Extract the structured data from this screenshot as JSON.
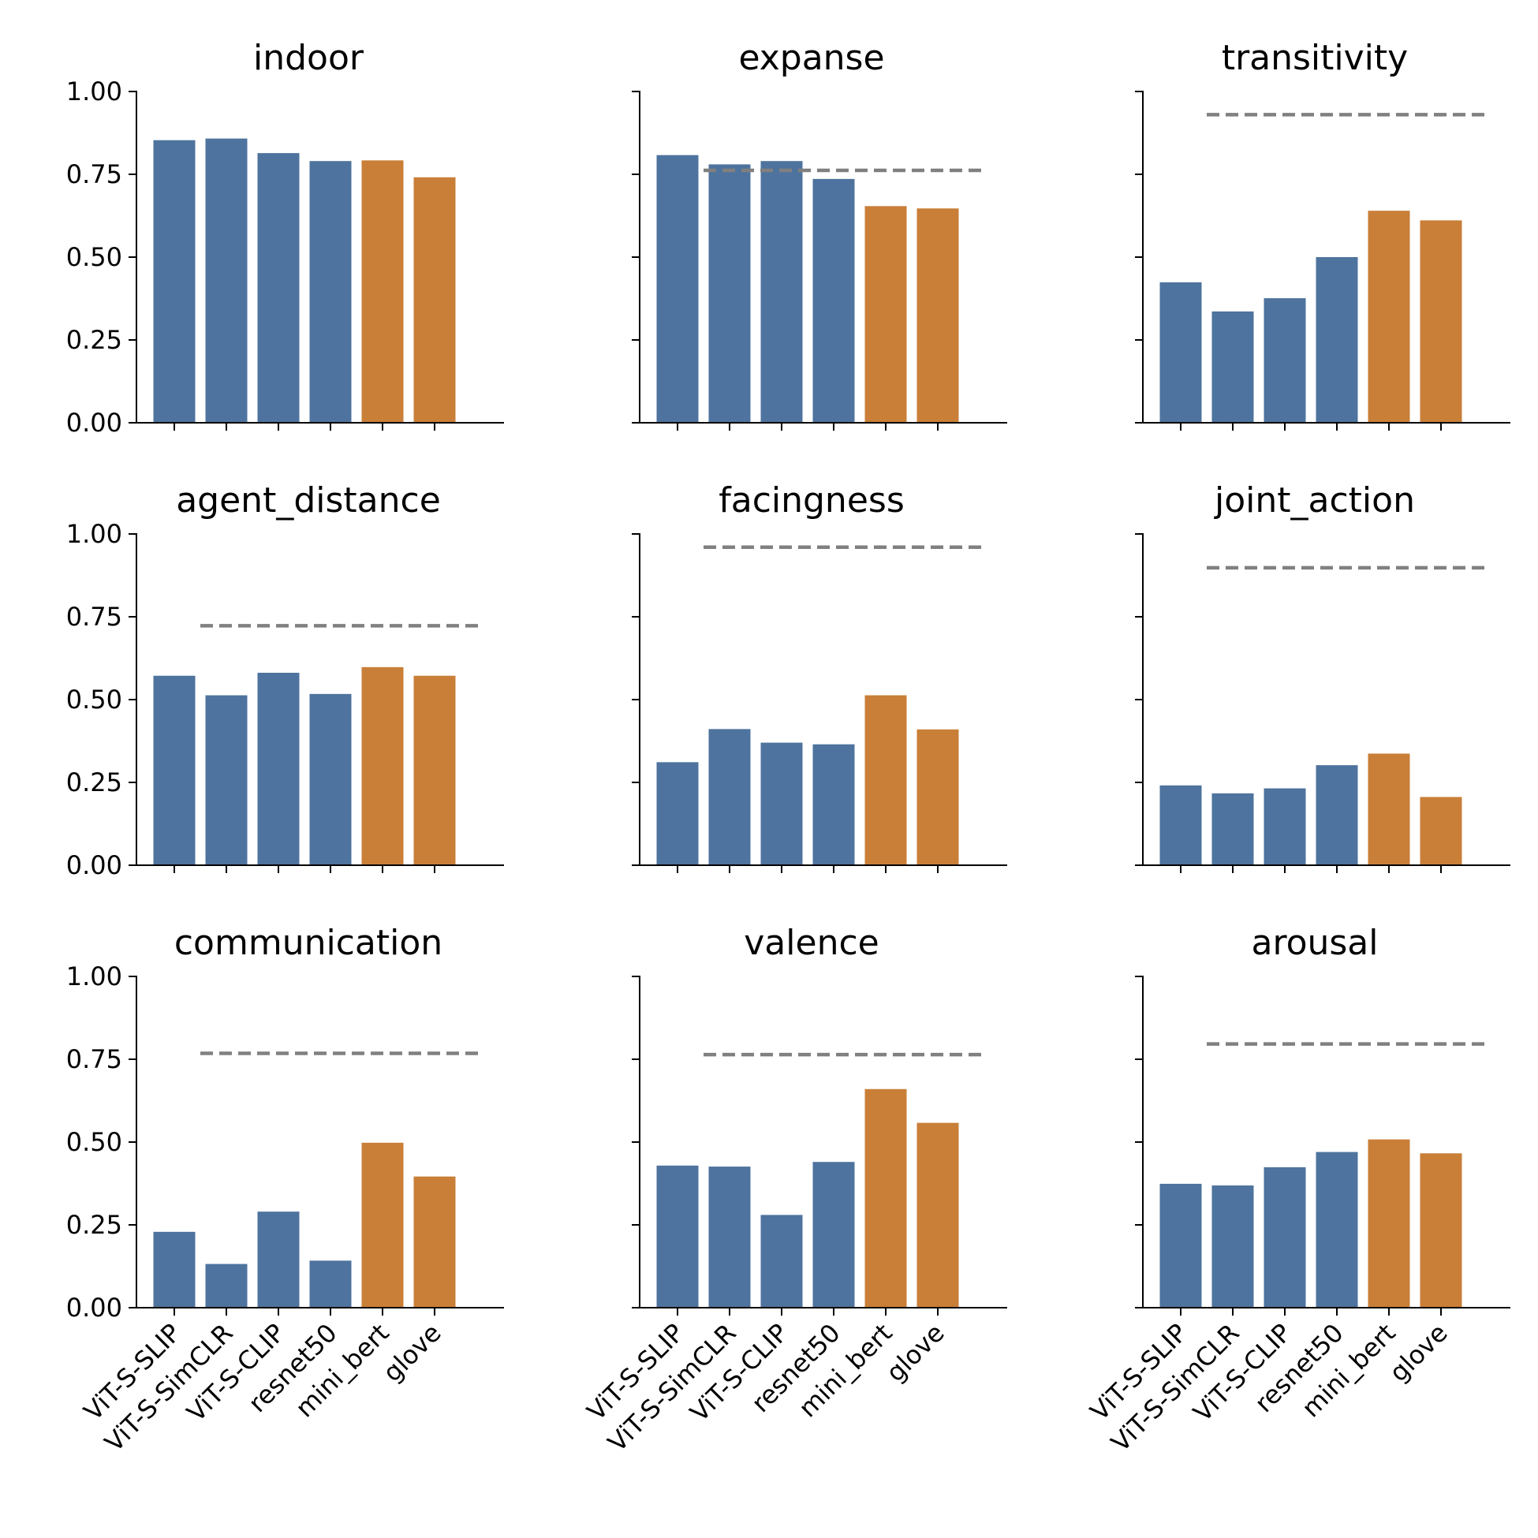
{
  "chart_data": {
    "type": "bar",
    "layout": "3x3 small multiples, shared y axis",
    "categories": [
      "ViT-S-SLIP",
      "ViT-S-SimCLR",
      "ViT-S-CLIP",
      "resnet50",
      "mini_bert",
      "glove"
    ],
    "ylim": [
      0,
      1
    ],
    "yticks": [
      "0.00",
      "0.25",
      "0.50",
      "0.75",
      "1.00"
    ],
    "grid": false,
    "colors": {
      "vision": "#4e739e",
      "language": "#c97f38",
      "reference_line": "#808080"
    },
    "bar_colors": [
      "vision",
      "vision",
      "vision",
      "vision",
      "language",
      "language"
    ],
    "panels": [
      {
        "title": "indoor",
        "values": [
          0.853,
          0.858,
          0.814,
          0.79,
          0.792,
          0.741
        ],
        "reference": null
      },
      {
        "title": "expanse",
        "values": [
          0.808,
          0.78,
          0.79,
          0.736,
          0.654,
          0.647
        ],
        "reference": 0.762
      },
      {
        "title": "transitivity",
        "values": [
          0.424,
          0.336,
          0.376,
          0.5,
          0.64,
          0.611
        ],
        "reference": 0.93
      },
      {
        "title": "agent_distance",
        "values": [
          0.572,
          0.513,
          0.581,
          0.517,
          0.598,
          0.572
        ],
        "reference": 0.723
      },
      {
        "title": "facingness",
        "values": [
          0.311,
          0.411,
          0.37,
          0.365,
          0.513,
          0.41
        ],
        "reference": 0.96
      },
      {
        "title": "joint_action",
        "values": [
          0.241,
          0.217,
          0.232,
          0.302,
          0.337,
          0.206
        ],
        "reference": 0.898
      },
      {
        "title": "communication",
        "values": [
          0.229,
          0.132,
          0.29,
          0.142,
          0.498,
          0.396
        ],
        "reference": 0.768
      },
      {
        "title": "valence",
        "values": [
          0.429,
          0.426,
          0.28,
          0.44,
          0.66,
          0.558
        ],
        "reference": 0.764
      },
      {
        "title": "arousal",
        "values": [
          0.374,
          0.369,
          0.424,
          0.47,
          0.508,
          0.466
        ],
        "reference": 0.796
      }
    ]
  }
}
